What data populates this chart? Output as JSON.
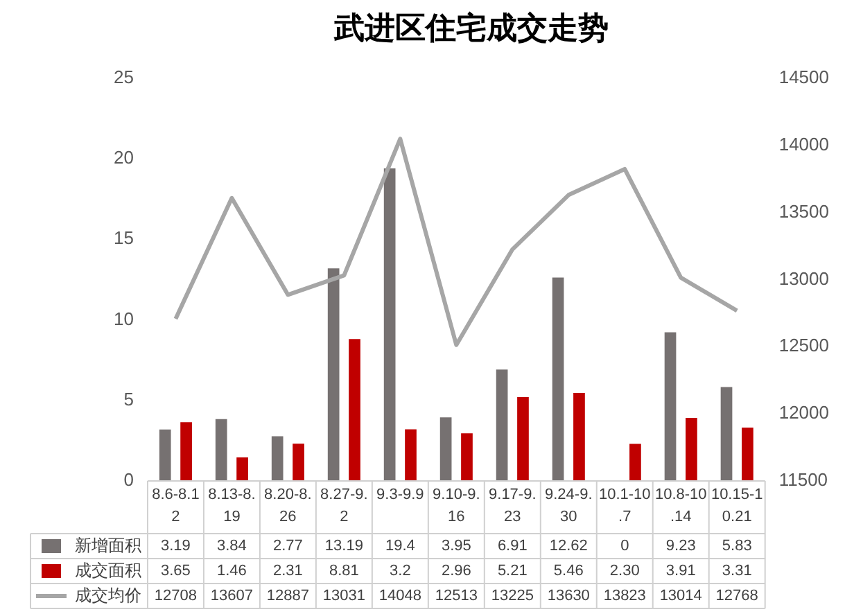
{
  "chart_data": {
    "type": "bar",
    "title": "武进区住宅成交走势",
    "categories": [
      "8.6-8.12",
      "8.13-8.19",
      "8.20-8.26",
      "8.27-9.2",
      "9.3-9.9",
      "9.10-9.16",
      "9.17-9.23",
      "9.24-9.30",
      "10.1-10.7",
      "10.8-10.14",
      "10.15-10.21"
    ],
    "series": [
      {
        "name": "新增面积",
        "color": "#767171",
        "values": [
          3.19,
          3.84,
          2.77,
          13.19,
          19.4,
          3.95,
          6.91,
          12.62,
          0,
          9.23,
          5.83
        ],
        "value_labels": [
          "3.19",
          "3.84",
          "2.77",
          "13.19",
          "19.4",
          "3.95",
          "6.91",
          "12.62",
          "0",
          "9.23",
          "5.83"
        ]
      },
      {
        "name": "成交面积",
        "color": "#c00000",
        "values": [
          3.65,
          1.46,
          2.31,
          8.81,
          3.2,
          2.96,
          5.21,
          5.46,
          2.3,
          3.91,
          3.31
        ],
        "value_labels": [
          "3.65",
          "1.46",
          "2.31",
          "8.81",
          "3.2",
          "2.96",
          "5.21",
          "5.46",
          "2.30",
          "3.91",
          "3.31"
        ]
      },
      {
        "name": "成交均价",
        "type": "line",
        "axis": "y2",
        "color": "#a6a6a6",
        "values": [
          12708,
          13607,
          12887,
          13031,
          14048,
          12513,
          13225,
          13630,
          13823,
          13014,
          12768
        ],
        "value_labels": [
          "12708",
          "13607",
          "12887",
          "13031",
          "14048",
          "12513",
          "13225",
          "13630",
          "13823",
          "13014",
          "12768"
        ]
      }
    ],
    "ylim": [
      0,
      25
    ],
    "yticks": [
      0,
      5,
      10,
      15,
      20,
      25
    ],
    "y2lim": [
      11500,
      14500
    ],
    "y2ticks": [
      11500,
      12000,
      12500,
      13000,
      13500,
      14000,
      14500
    ],
    "grid": false,
    "legend": "bottom",
    "marker": "none"
  }
}
